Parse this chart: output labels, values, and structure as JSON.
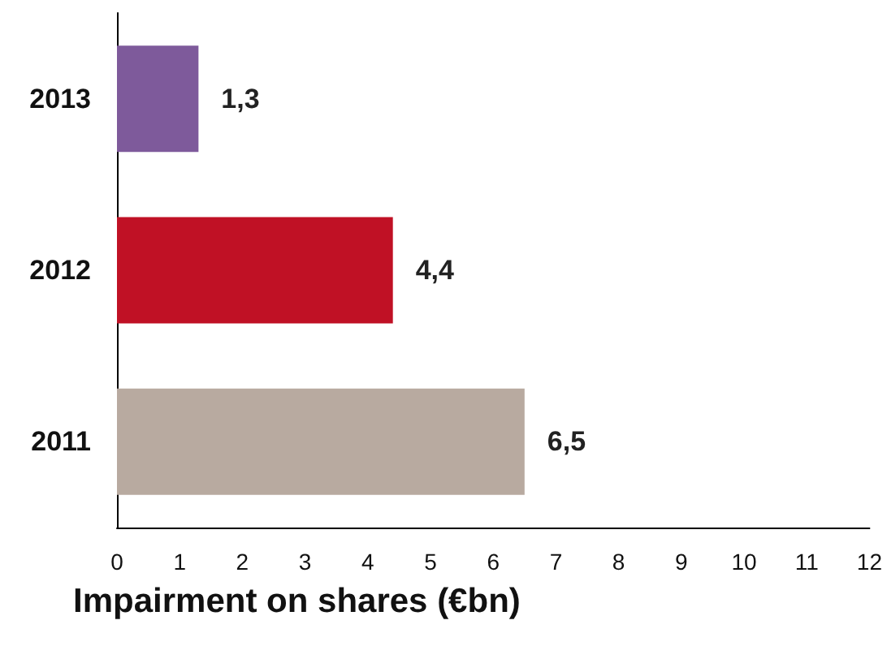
{
  "chart_data": {
    "type": "bar",
    "orientation": "horizontal",
    "xlabel": "Impairment on shares (€bn)",
    "categories": [
      "2013",
      "2012",
      "2011"
    ],
    "values": [
      1.3,
      4.4,
      6.5
    ],
    "colors": [
      "#7e5a9b",
      "#c01125",
      "#b8aaa0"
    ],
    "value_labels": [
      "1,3",
      "4,4",
      "6,5"
    ],
    "xlim": [
      0,
      12
    ],
    "xticks": [
      0,
      1,
      2,
      3,
      4,
      5,
      6,
      7,
      8,
      9,
      10,
      11,
      12
    ]
  }
}
